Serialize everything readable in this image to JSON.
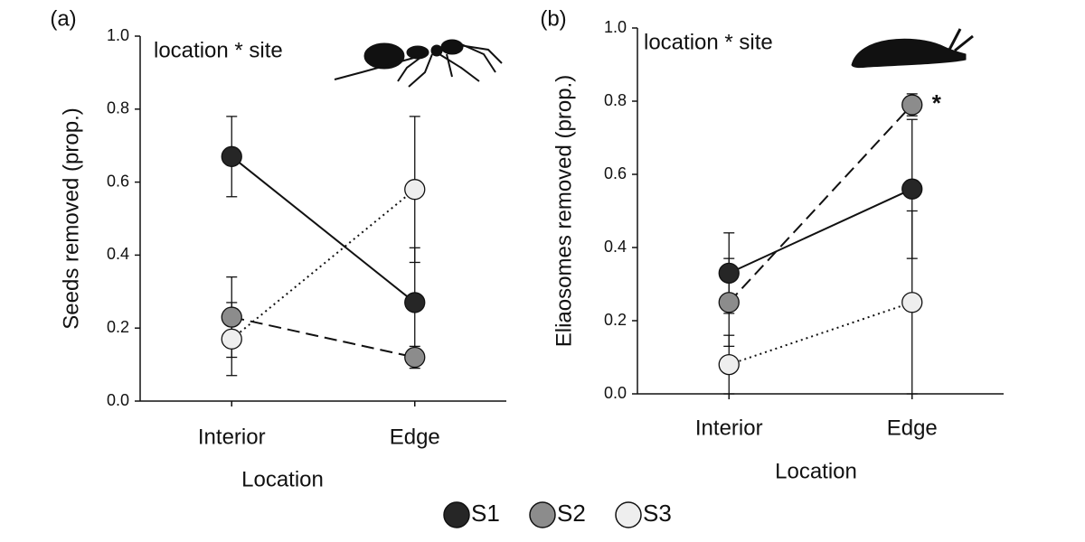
{
  "chart_data": [
    {
      "type": "line",
      "title": "(a)",
      "annotations": [
        "location * site"
      ],
      "ylabel": "Seeds removed (prop.)",
      "xlabel": "Location",
      "categories": [
        "Interior",
        "Edge"
      ],
      "ylim": [
        0,
        1
      ],
      "yticks": [
        {
          "value": 0,
          "label": "0.0"
        },
        0.2,
        0.4,
        0.6,
        0.8,
        {
          "value": 1,
          "label": "1.0"
        }
      ],
      "series": [
        {
          "name": "S1",
          "color": "#262626",
          "linestyle": "solid",
          "values": [
            0.67,
            0.27
          ],
          "errors": [
            0.11,
            0.15
          ]
        },
        {
          "name": "S2",
          "color": "#8c8c8c",
          "linestyle": "dashed",
          "values": [
            0.23,
            0.12
          ],
          "errors": [
            0.11,
            0.03
          ]
        },
        {
          "name": "S3",
          "color": "#eeeeee",
          "linestyle": "dotted",
          "values": [
            0.17,
            0.58
          ],
          "errors": [
            0.1,
            0.2
          ]
        }
      ]
    },
    {
      "type": "line",
      "title": "(b)",
      "annotations": [
        "location * site",
        "*"
      ],
      "ylabel": "Eliaosomes removed (prop.)",
      "xlabel": "Location",
      "categories": [
        "Interior",
        "Edge"
      ],
      "ylim": [
        0,
        1
      ],
      "yticks": [
        {
          "value": 0,
          "label": "0.0"
        },
        0.2,
        0.4,
        0.6,
        0.8,
        {
          "value": 1,
          "label": "1.0"
        }
      ],
      "series": [
        {
          "color": "#262626",
          "linestyle": "solid",
          "values": [
            0.33,
            0.56
          ],
          "errors": [
            0.11,
            0.19
          ]
        },
        {
          "color": "#8c8c8c",
          "linestyle": "dashed",
          "values": [
            0.25,
            0.79
          ],
          "errors": [
            0.12,
            0.03
          ]
        },
        {
          "color": "#eeeeee",
          "linestyle": "dotted",
          "values": [
            0.08,
            0.25
          ],
          "errors": [
            0.08,
            0.25
          ]
        }
      ]
    }
  ]
}
